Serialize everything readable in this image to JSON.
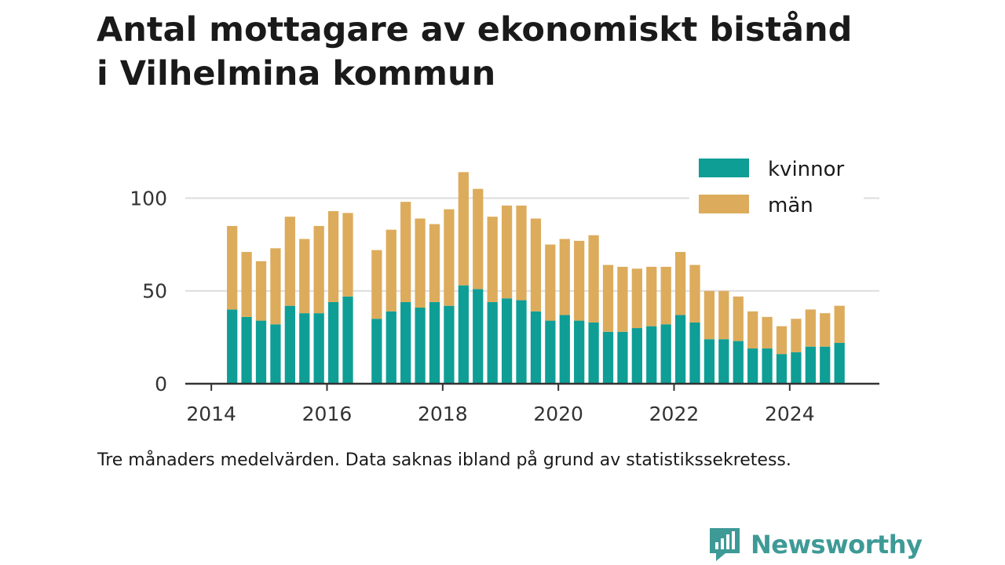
{
  "title_lines": [
    "Antal mottagare av ekonomiskt bistånd",
    "i Vilhelmina kommun"
  ],
  "caption": "Tre månaders medelvärden. Data saknas ibland på grund av statistikssekretess.",
  "brand": {
    "name": "Newsworthy",
    "icon": "newsworthy-logo-icon",
    "color": "#3e9a96"
  },
  "chart_data": {
    "type": "bar",
    "stacked": true,
    "x_unit": "year",
    "xlim": [
      2013.55,
      2025.55
    ],
    "ylim": [
      0,
      115
    ],
    "yticks": [
      0,
      50,
      100
    ],
    "xticks": [
      2014,
      2016,
      2018,
      2020,
      2022,
      2024
    ],
    "grid": true,
    "legend_position": "top-right",
    "colors": {
      "kvinnor": "#0e9e96",
      "man": "#dcac5c",
      "grid": "#dddddd",
      "axis": "#333333"
    },
    "x": [
      2014.36,
      2014.61,
      2014.86,
      2015.11,
      2015.36,
      2015.61,
      2015.86,
      2016.11,
      2016.36,
      2016.86,
      2017.11,
      2017.36,
      2017.61,
      2017.86,
      2018.11,
      2018.36,
      2018.61,
      2018.86,
      2019.11,
      2019.36,
      2019.61,
      2019.86,
      2020.11,
      2020.36,
      2020.61,
      2020.86,
      2021.11,
      2021.36,
      2021.61,
      2021.86,
      2022.11,
      2022.36,
      2022.61,
      2022.86,
      2023.11,
      2023.36,
      2023.61,
      2023.86,
      2024.11,
      2024.36,
      2024.61,
      2024.86
    ],
    "series": [
      {
        "name": "kvinnor",
        "values": [
          40,
          36,
          34,
          32,
          42,
          38,
          38,
          44,
          47,
          35,
          39,
          44,
          41,
          44,
          42,
          53,
          51,
          44,
          46,
          45,
          39,
          34,
          37,
          34,
          33,
          28,
          28,
          30,
          31,
          32,
          37,
          33,
          24,
          24,
          23,
          19,
          19,
          16,
          17,
          20,
          20,
          22
        ]
      },
      {
        "name": "män",
        "values": [
          45,
          35,
          32,
          41,
          48,
          40,
          47,
          49,
          45,
          37,
          44,
          54,
          48,
          42,
          52,
          61,
          54,
          46,
          50,
          51,
          50,
          41,
          41,
          43,
          47,
          36,
          35,
          32,
          32,
          31,
          34,
          31,
          26,
          26,
          24,
          20,
          17,
          15,
          18,
          20,
          18,
          20
        ]
      }
    ]
  }
}
